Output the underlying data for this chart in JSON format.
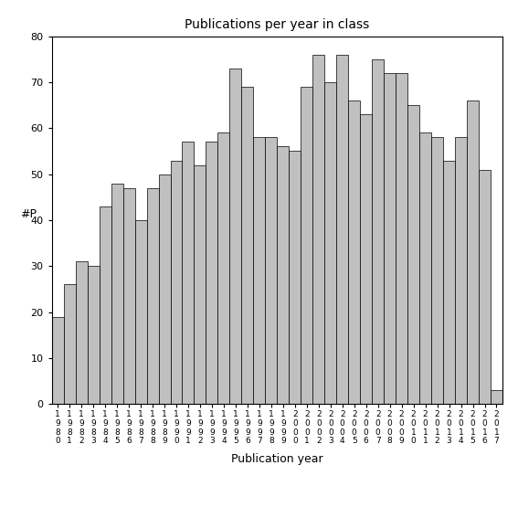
{
  "title": "Publications per year in class",
  "xlabel": "Publication year",
  "ylabel": "#P",
  "years": [
    1980,
    1981,
    1982,
    1983,
    1984,
    1985,
    1986,
    1987,
    1988,
    1989,
    1990,
    1991,
    1992,
    1993,
    1994,
    1995,
    1996,
    1997,
    1998,
    1999,
    2000,
    2001,
    2002,
    2003,
    2004,
    2005,
    2006,
    2007,
    2008,
    2009,
    2010,
    2011,
    2012,
    2013,
    2014,
    2015,
    2016,
    2017
  ],
  "values": [
    19,
    26,
    31,
    30,
    43,
    48,
    47,
    40,
    47,
    50,
    53,
    57,
    52,
    57,
    59,
    73,
    69,
    58,
    58,
    56,
    55,
    69,
    76,
    70,
    76,
    66,
    63,
    75,
    72,
    72,
    65,
    59,
    58,
    53,
    58,
    66,
    51,
    3
  ],
  "bar_color": "#c0c0c0",
  "bar_edge_color": "#000000",
  "ylim": [
    0,
    80
  ],
  "yticks": [
    0,
    10,
    20,
    30,
    40,
    50,
    60,
    70,
    80
  ],
  "figsize": [
    5.67,
    5.67
  ],
  "dpi": 100
}
